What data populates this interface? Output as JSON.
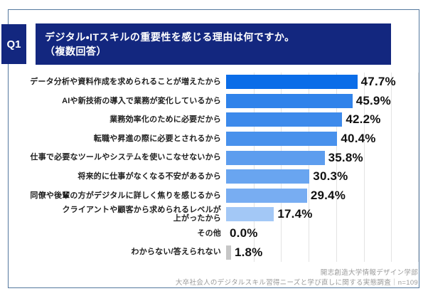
{
  "question": {
    "badge": "Q1",
    "title_line1": "デジタル・ITスキルの重要性を感じる理由は何ですか。",
    "title_line2": "（複数回答）"
  },
  "chart_data": {
    "type": "bar",
    "orientation": "horizontal",
    "unit": "%",
    "xlim": [
      0,
      70
    ],
    "grid": true,
    "gridline_interval": 10,
    "categories": [
      "データ分析や資料作成を求められることが増えたから",
      "AIや新技術の導入で業務が変化しているから",
      "業務効率化のために必要だから",
      "転職や昇進の際に必要とされるから",
      "仕事で必要なツールやシステムを使いこなせないから",
      "将来的に仕事がなくなる不安があるから",
      "同僚や後輩の方がデジタルに詳しく焦りを感じるから",
      "クライアントや顧客から求められるレベルが\n上がったから",
      "その他",
      "わからない/答えられない"
    ],
    "values": [
      47.7,
      45.9,
      42.2,
      40.4,
      35.8,
      30.3,
      29.4,
      17.4,
      0.0,
      1.8
    ],
    "value_labels": [
      "47.7%",
      "45.9%",
      "42.2%",
      "40.4%",
      "35.8%",
      "30.3%",
      "29.4%",
      "17.4%",
      "0.0%",
      "1.8%"
    ],
    "bar_colors": [
      "#0b6de8",
      "#3083ea",
      "#3d8aeb",
      "#4891ec",
      "#5d9dee",
      "#69a5f0",
      "#78adf2",
      "#a3c8f6",
      "#ffffff",
      "#c6c6c6"
    ]
  },
  "footer": {
    "line1": "開志創造大学情報デザイン学部",
    "line2": "大卒社会人のデジタルスキル習得ニーズと学び直しに関する実態調査｜n=109"
  },
  "colors": {
    "navy": "#13277f",
    "frame_border": "#54789e",
    "grid": "#e3e3e3"
  }
}
